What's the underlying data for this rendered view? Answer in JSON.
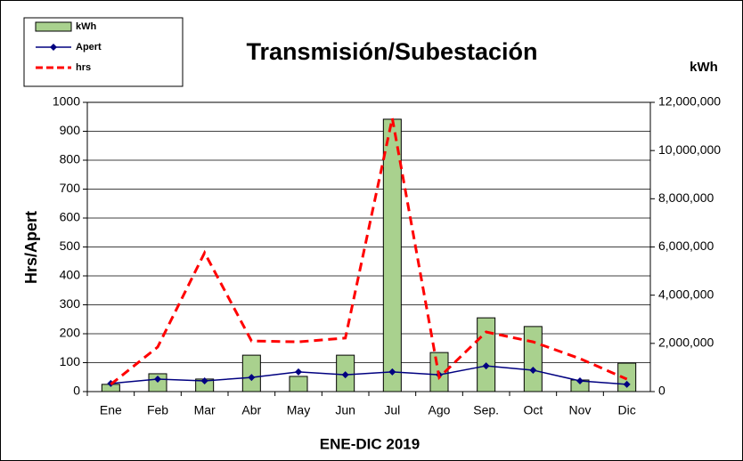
{
  "chart_data": {
    "type": "bar_line",
    "title": "Transmisión/Subestación",
    "y_label": "Hrs/Apert",
    "y2_label": "kWh",
    "x_label": "ENE-DIC 2019",
    "categories": [
      "Ene",
      "Feb",
      "Mar",
      "Abr",
      "May",
      "Jun",
      "Jul",
      "Ago",
      "Sep.",
      "Oct",
      "Nov",
      "Dic"
    ],
    "series": [
      {
        "name": "kWh",
        "type": "bar",
        "axis": "y2",
        "color": "#a9d18e",
        "values": [
          300000,
          740000,
          520000,
          1510000,
          630000,
          1510000,
          11300000,
          1620000,
          3060000,
          2700000,
          480000,
          1180000
        ]
      },
      {
        "name": "Apert",
        "type": "line",
        "color": "#000080",
        "values": [
          28,
          43,
          37,
          49,
          68,
          58,
          68,
          58,
          89,
          74,
          37,
          25
        ]
      },
      {
        "name": "hrs",
        "type": "dashed",
        "color": "#ff0000",
        "values": [
          25,
          154,
          480,
          175,
          172,
          185,
          945,
          49,
          206,
          172,
          114,
          43
        ]
      }
    ],
    "ylim": [
      0,
      1000
    ],
    "yticks": [
      0,
      100,
      200,
      300,
      400,
      500,
      600,
      700,
      800,
      900,
      1000
    ],
    "y2lim": [
      0,
      12000000
    ],
    "y2ticks": [
      0,
      {
        "value": 2000000,
        "label": "2,000,000"
      },
      {
        "value": 4000000,
        "label": "4,000,000"
      },
      {
        "value": 6000000,
        "label": "6,000,000"
      },
      {
        "value": 8000000,
        "label": "8,000,000"
      },
      {
        "value": 10000000,
        "label": "10,000,000"
      },
      {
        "value": 12000000,
        "label": "12,000,000"
      }
    ],
    "grid": true,
    "legend": "top-left"
  }
}
